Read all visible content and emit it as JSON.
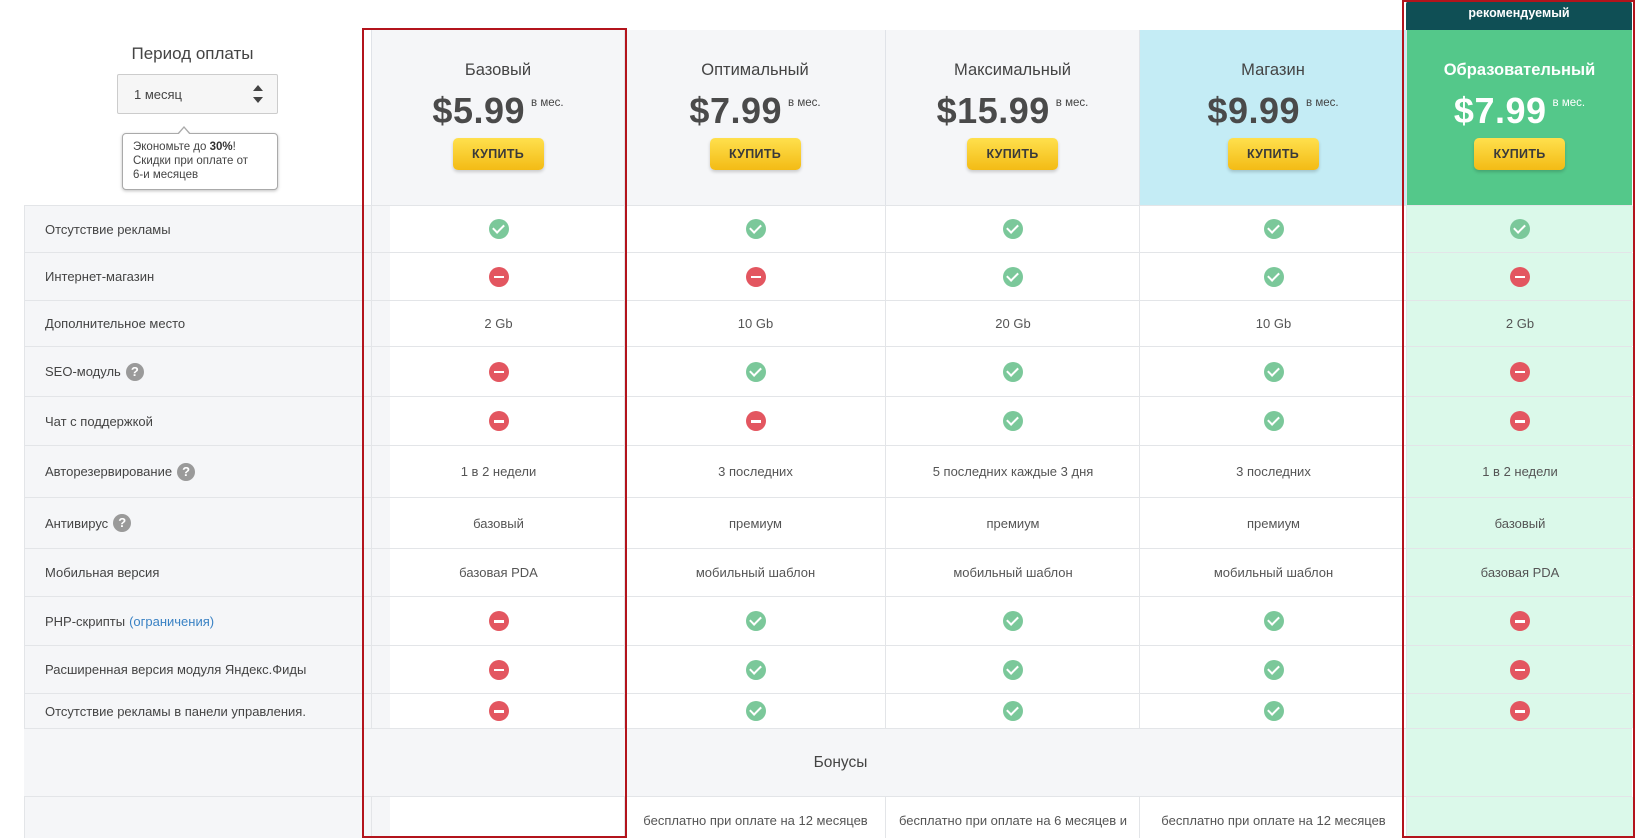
{
  "period": {
    "title": "Период оплаты",
    "selected": "1 месяц",
    "tooltip": {
      "prefix": "Экономьте до ",
      "percent": "30%",
      "suffix": "!",
      "line2": "Скидки при оплате от",
      "line3": "6-и месяцев"
    }
  },
  "recommended_label": "рекомендуемый",
  "plans": [
    {
      "name": "Базовый",
      "price": "$5.99",
      "per": "в мес.",
      "buy": "КУПИТЬ",
      "bg": "#f5f6f8"
    },
    {
      "name": "Оптимальный",
      "price": "$7.99",
      "per": "в мес.",
      "buy": "КУПИТЬ",
      "bg": "#f5f6f8"
    },
    {
      "name": "Максимальный",
      "price": "$15.99",
      "per": "в мес.",
      "buy": "КУПИТЬ",
      "bg": "#f5f6f8"
    },
    {
      "name": "Магазин",
      "price": "$9.99",
      "per": "в мес.",
      "buy": "КУПИТЬ",
      "bg": "#c4ecf5"
    },
    {
      "name": "Образовательный",
      "price": "$7.99",
      "per": "в мес.",
      "buy": "КУПИТЬ",
      "bg": "#54c88a"
    }
  ],
  "features": [
    {
      "label": "Отсутствие рекламы",
      "values": [
        "ok",
        "ok",
        "ok",
        "ok",
        "ok"
      ]
    },
    {
      "label": "Интернет-магазин",
      "values": [
        "no",
        "no",
        "ok",
        "ok",
        "no"
      ]
    },
    {
      "label": "Дополнительное место",
      "values": [
        "2 Gb",
        "10 Gb",
        "20 Gb",
        "10 Gb",
        "2 Gb"
      ]
    },
    {
      "label": "SEO-модуль",
      "help": "?",
      "values": [
        "no",
        "ok",
        "ok",
        "ok",
        "no"
      ]
    },
    {
      "label": "Чат с поддержкой",
      "values": [
        "no",
        "no",
        "ok",
        "ok",
        "no"
      ]
    },
    {
      "label": "Авторезервирование",
      "help": "?",
      "values": [
        "1 в 2 недели",
        "3 последних",
        "5 последних каждые 3 дня",
        "3 последних",
        "1 в 2 недели"
      ]
    },
    {
      "label": "Антивирус",
      "help": "?",
      "values": [
        "базовый",
        "премиум",
        "премиум",
        "премиум",
        "базовый"
      ]
    },
    {
      "label": "Мобильная версия",
      "values": [
        "базовая PDA",
        "мобильный шаблон",
        "мобильный шаблон",
        "мобильный шаблон",
        "базовая PDA"
      ]
    },
    {
      "label": "PHP-скрипты",
      "link": "(ограничения)",
      "values": [
        "no",
        "ok",
        "ok",
        "ok",
        "no"
      ]
    },
    {
      "label": "Расширенная версия модуля Яндекс.Фиды",
      "values": [
        "no",
        "ok",
        "ok",
        "ok",
        "no"
      ]
    },
    {
      "label": "Отсутствие рекламы в панели управления.",
      "values": [
        "no",
        "ok",
        "ok",
        "ok",
        "no"
      ]
    }
  ],
  "bonus_title": "Бонусы",
  "bonus_row": [
    "",
    "бесплатно при оплате на 12 месяцев",
    "бесплатно при оплате на 6 месяцев и",
    "бесплатно при оплате на 12 месяцев",
    ""
  ]
}
